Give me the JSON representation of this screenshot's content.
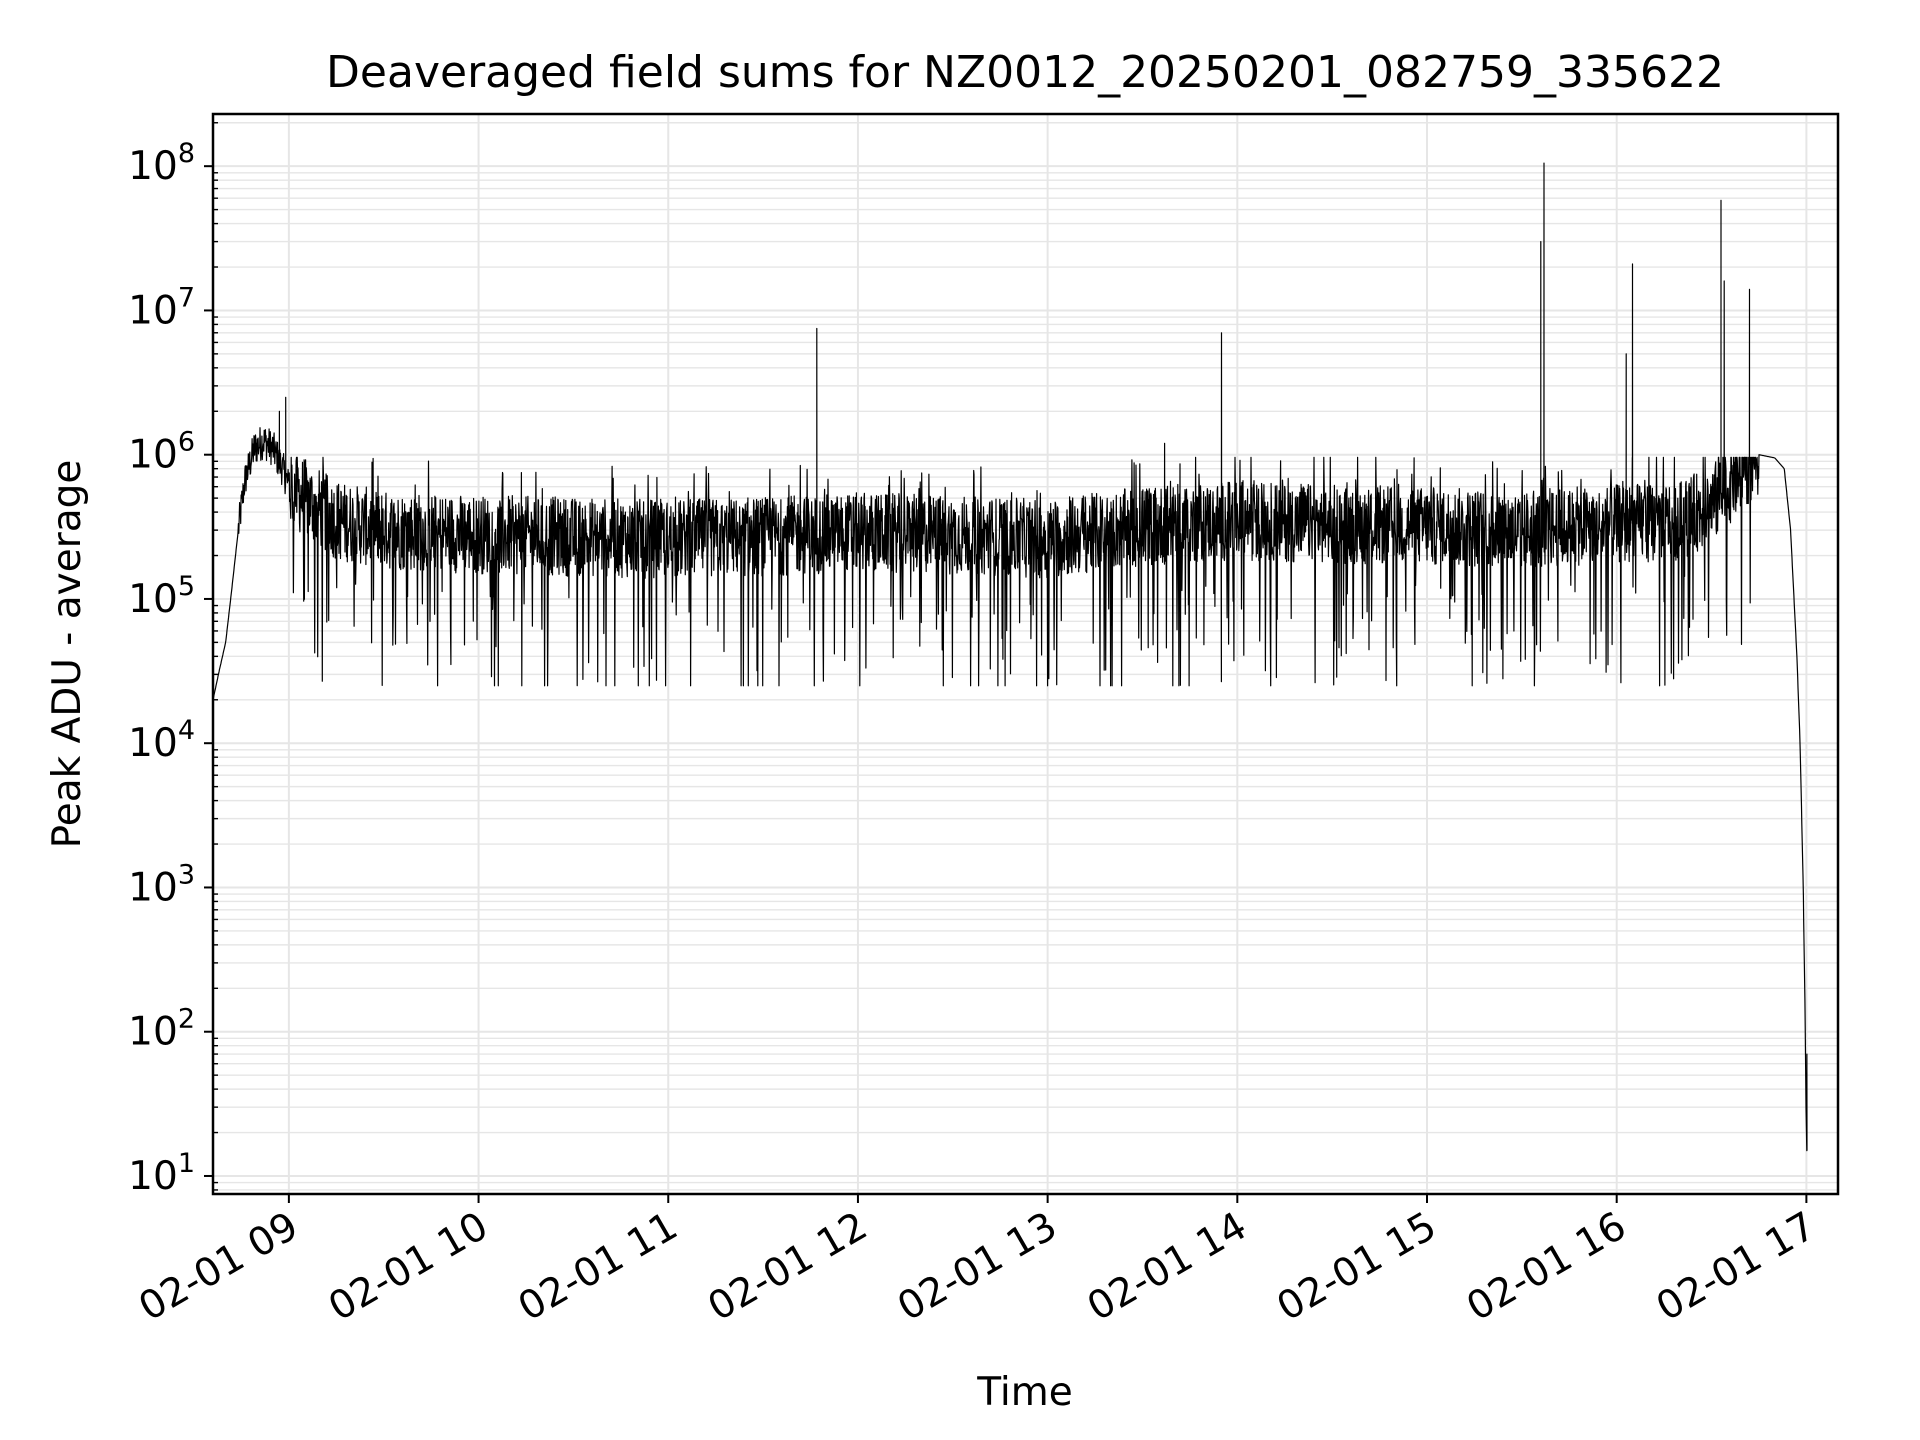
{
  "chart_data": {
    "type": "line",
    "title": "Deaveraged field sums for NZ0012_20250201_082759_335622",
    "xlabel": "Time",
    "ylabel": "Peak ADU - average",
    "y_scale": "log",
    "ylim": [
      7.5,
      230000000
    ],
    "xlim": [
      "2025-02-01 08:36",
      "2025-02-01 17:10"
    ],
    "grid": true,
    "x_ticks": [
      "02-01 09",
      "02-01 10",
      "02-01 11",
      "02-01 12",
      "02-01 13",
      "02-01 14",
      "02-01 15",
      "02-01 16",
      "02-01 17"
    ],
    "x_tick_times": [
      "2025-02-01 09:00",
      "2025-02-01 10:00",
      "2025-02-01 11:00",
      "2025-02-01 12:00",
      "2025-02-01 13:00",
      "2025-02-01 14:00",
      "2025-02-01 15:00",
      "2025-02-01 16:00",
      "2025-02-01 17:00"
    ],
    "y_ticks": [
      {
        "value": 10,
        "base": "10",
        "exp": "1"
      },
      {
        "value": 100,
        "base": "10",
        "exp": "2"
      },
      {
        "value": 1000,
        "base": "10",
        "exp": "3"
      },
      {
        "value": 10000,
        "base": "10",
        "exp": "4"
      },
      {
        "value": 100000,
        "base": "10",
        "exp": "5"
      },
      {
        "value": 1000000,
        "base": "10",
        "exp": "6"
      },
      {
        "value": 10000000,
        "base": "10",
        "exp": "7"
      },
      {
        "value": 100000000,
        "base": "10",
        "exp": "8"
      }
    ],
    "line_color": "#000000",
    "grid_color": "#e6e6e6",
    "series": [
      {
        "points": [
          [
            "2025-02-01 08:36",
            20000
          ],
          [
            "2025-02-01 08:38",
            32000
          ],
          [
            "2025-02-01 08:40",
            50000
          ],
          [
            "2025-02-01 08:42",
            120000
          ],
          [
            "2025-02-01 08:44",
            300000
          ],
          [
            "2025-02-01 08:46",
            650000
          ],
          [
            "2025-02-01 08:49",
            1100000
          ],
          [
            "2025-02-01 08:52",
            1250000
          ],
          [
            "2025-02-01 08:55",
            1100000
          ],
          [
            "2025-02-01 08:58",
            800000
          ],
          [
            "2025-02-01 09:00",
            600000
          ],
          [
            "2025-02-01 09:05",
            500000
          ],
          [
            "2025-02-01 09:10",
            420000
          ],
          [
            "2025-02-01 09:15",
            350000
          ],
          [
            "2025-02-01 09:30",
            300000
          ],
          [
            "2025-02-01 10:00",
            280000
          ],
          [
            "2025-02-01 10:30",
            270000
          ],
          [
            "2025-02-01 11:00",
            260000
          ],
          [
            "2025-02-01 11:30",
            270000
          ],
          [
            "2025-02-01 12:00",
            290000
          ],
          [
            "2025-02-01 12:30",
            280000
          ],
          [
            "2025-02-01 13:00",
            260000
          ],
          [
            "2025-02-01 13:30",
            320000
          ],
          [
            "2025-02-01 14:00",
            350000
          ],
          [
            "2025-02-01 14:30",
            330000
          ],
          [
            "2025-02-01 15:00",
            320000
          ],
          [
            "2025-02-01 15:30",
            300000
          ],
          [
            "2025-02-01 16:00",
            330000
          ],
          [
            "2025-02-01 16:20",
            350000
          ],
          [
            "2025-02-01 16:30",
            450000
          ],
          [
            "2025-02-01 16:38",
            700000
          ],
          [
            "2025-02-01 16:45",
            1000000
          ],
          [
            "2025-02-01 16:50",
            950000
          ],
          [
            "2025-02-01 16:53",
            800000
          ],
          [
            "2025-02-01 16:55",
            300000
          ],
          [
            "2025-02-01 16:57",
            40000
          ],
          [
            "2025-02-01 16:58",
            10000
          ],
          [
            "2025-02-01 16:59",
            1000
          ],
          [
            "2025-02-01 16:59:40",
            100
          ],
          [
            "2025-02-01 17:00",
            15
          ]
        ],
        "spikes": [
          [
            "2025-02-01 08:57",
            2000000
          ],
          [
            "2025-02-01 08:59",
            2500000
          ],
          [
            "2025-02-01 11:47",
            7500000
          ],
          [
            "2025-02-01 13:55",
            7000000
          ],
          [
            "2025-02-01 13:37",
            1200000
          ],
          [
            "2025-02-01 15:36",
            30000000
          ],
          [
            "2025-02-01 15:37",
            105000000
          ],
          [
            "2025-02-01 16:03",
            5000000
          ],
          [
            "2025-02-01 16:05",
            21000000
          ],
          [
            "2025-02-01 16:33",
            58000000
          ],
          [
            "2025-02-01 16:34",
            16000000
          ],
          [
            "2025-02-01 16:42",
            14000000
          ],
          [
            "2025-02-01 17:00:10",
            70
          ]
        ],
        "band": {
          "from": "2025-02-01 09:00",
          "to": "2025-02-01 16:45",
          "low": 25000,
          "high": 800000
        }
      }
    ]
  }
}
